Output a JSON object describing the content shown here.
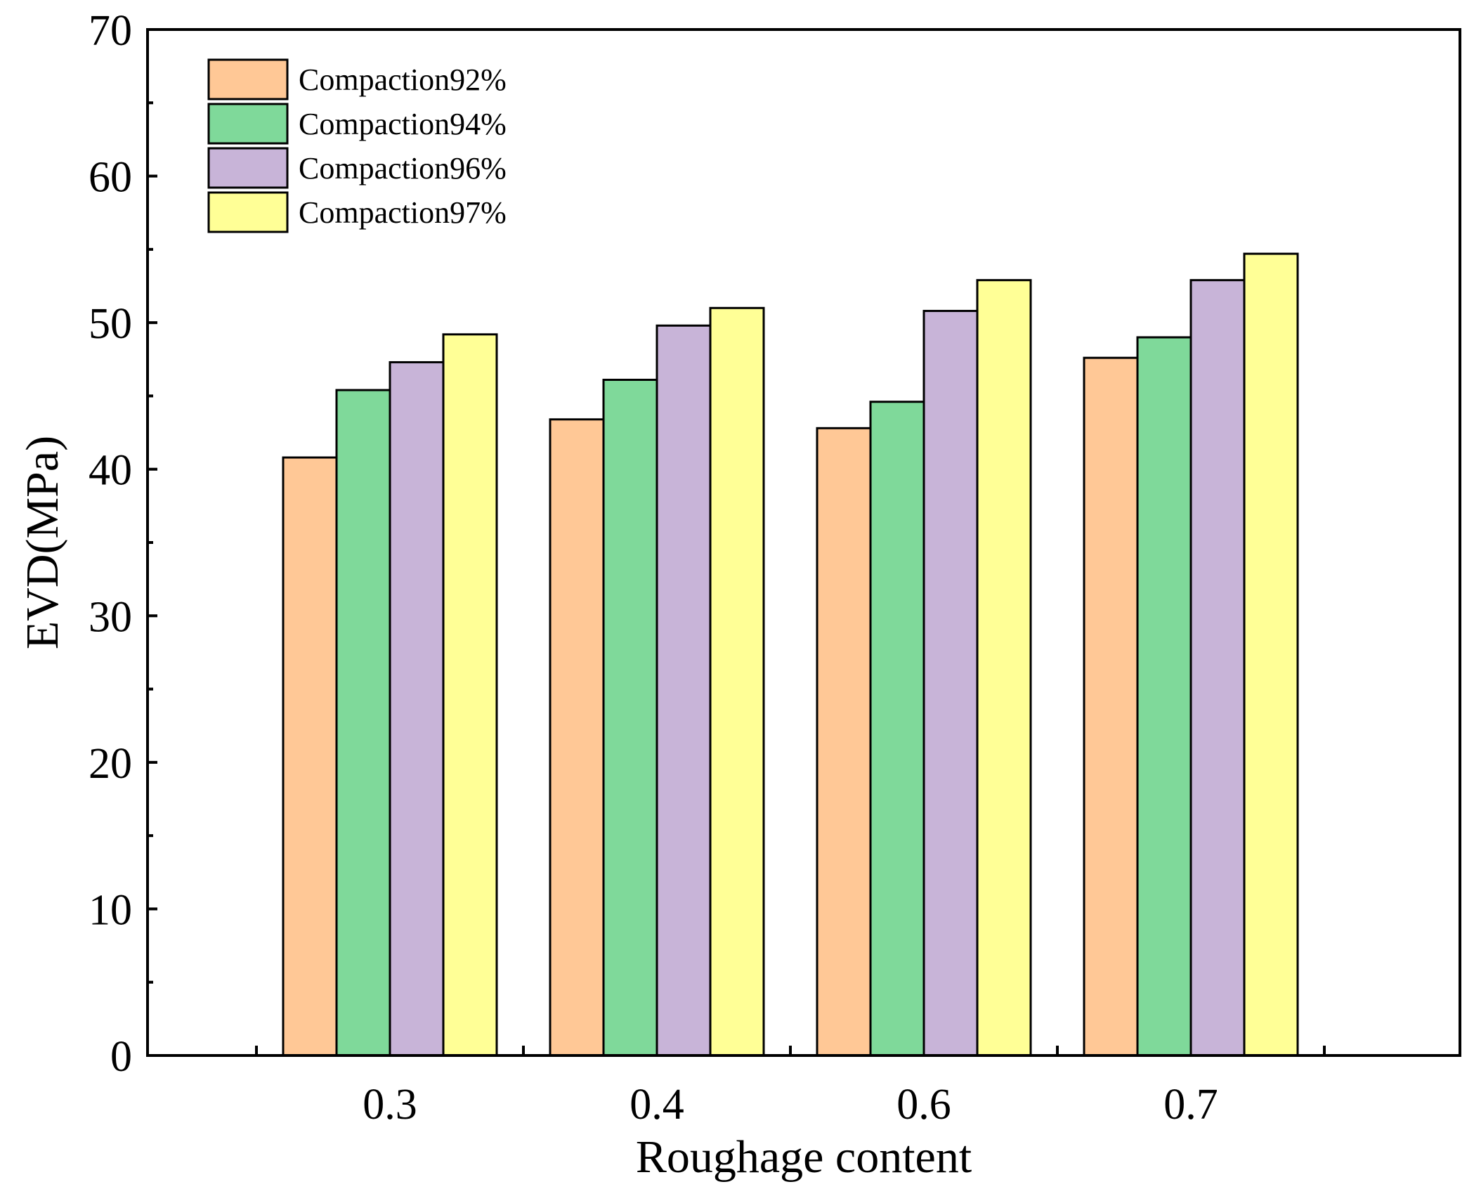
{
  "chart_data": {
    "type": "bar",
    "title": "",
    "xlabel": "Roughage content",
    "ylabel": "EVD(MPa)",
    "categories": [
      "0.3",
      "0.4",
      "0.6",
      "0.7"
    ],
    "ylim": [
      0,
      70
    ],
    "yticks": [
      0,
      10,
      20,
      30,
      40,
      50,
      60,
      70
    ],
    "ytick_labels": [
      "0",
      "10",
      "20",
      "30",
      "40",
      "50",
      "60",
      "70"
    ],
    "grid": false,
    "legend_position": "top-left",
    "series": [
      {
        "name": "Compaction92%",
        "color": "#FFC896",
        "values": [
          40.8,
          43.4,
          42.8,
          47.6
        ]
      },
      {
        "name": "Compaction94%",
        "color": "#7FD99A",
        "values": [
          45.4,
          46.1,
          44.6,
          49.0
        ]
      },
      {
        "name": "Compaction96%",
        "color": "#C8B4D8",
        "values": [
          47.3,
          49.8,
          50.8,
          52.9
        ]
      },
      {
        "name": "Compaction97%",
        "color": "#FFFF96",
        "values": [
          49.2,
          51.0,
          52.9,
          54.7
        ]
      }
    ]
  }
}
